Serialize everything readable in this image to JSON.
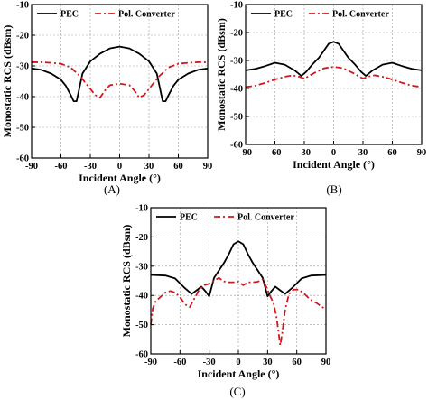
{
  "chart_data": [
    {
      "type": "line",
      "caption": "(A)",
      "xlabel": "Incident Angle (°)",
      "ylabel": "Monostatic RCS (dBsm)",
      "xlim": [
        -90,
        90
      ],
      "ylim": [
        -60,
        -10
      ],
      "xticks": [
        -90,
        -60,
        -30,
        0,
        30,
        60,
        90
      ],
      "yticks": [
        -10,
        -20,
        -30,
        -40,
        -50,
        -60
      ],
      "grid": true,
      "legend": "top-inside",
      "series": [
        {
          "name": "PEC",
          "color": "#000000",
          "style": "solid",
          "x": [
            -90,
            -80,
            -70,
            -60,
            -55,
            -50,
            -47,
            -44,
            -42,
            -38,
            -30,
            -20,
            -10,
            0,
            10,
            20,
            30,
            38,
            42,
            44,
            47,
            50,
            55,
            60,
            70,
            80,
            90
          ],
          "y": [
            -30.8,
            -31.3,
            -32.5,
            -34.5,
            -36.5,
            -39.5,
            -41.5,
            -41.5,
            -38.5,
            -32.5,
            -28.5,
            -26,
            -24.3,
            -23.7,
            -24.3,
            -26,
            -28.5,
            -32.5,
            -38.5,
            -41.5,
            -41.5,
            -39.5,
            -36.5,
            -34.5,
            -32.5,
            -31.3,
            -30.8
          ]
        },
        {
          "name": "Pol. Converter",
          "color": "#d2181e",
          "style": "dashdot",
          "x": [
            -90,
            -80,
            -70,
            -60,
            -50,
            -40,
            -30,
            -25,
            -20,
            -15,
            -10,
            0,
            10,
            15,
            20,
            25,
            30,
            40,
            50,
            60,
            70,
            80,
            90
          ],
          "y": [
            -28.8,
            -28.8,
            -29,
            -29.3,
            -30.5,
            -33.5,
            -37.5,
            -39.5,
            -40.3,
            -38,
            -36.3,
            -35.8,
            -36.3,
            -38,
            -40.3,
            -39.5,
            -37.5,
            -33.5,
            -30.5,
            -29.3,
            -29,
            -28.8,
            -28.8
          ]
        }
      ]
    },
    {
      "type": "line",
      "caption": "(B)",
      "xlabel": "Incident Angle (°)",
      "ylabel": "Monostatic RCS (dBsm)",
      "xlim": [
        -90,
        90
      ],
      "ylim": [
        -60,
        -10
      ],
      "xticks": [
        -90,
        -60,
        -30,
        0,
        30,
        60,
        90
      ],
      "yticks": [
        -10,
        -20,
        -30,
        -40,
        -50,
        -60
      ],
      "grid": true,
      "legend": "top-inside",
      "series": [
        {
          "name": "PEC",
          "color": "#000000",
          "style": "solid",
          "x": [
            -90,
            -80,
            -70,
            -60,
            -50,
            -40,
            -33,
            -28,
            -22,
            -15,
            -10,
            -5,
            0,
            5,
            10,
            15,
            22,
            28,
            33,
            40,
            50,
            60,
            70,
            80,
            90
          ],
          "y": [
            -33.5,
            -33,
            -32,
            -30.8,
            -31.5,
            -33.5,
            -35.5,
            -34,
            -31.5,
            -29,
            -26.5,
            -24,
            -23.3,
            -24,
            -26.5,
            -29,
            -31.5,
            -34,
            -35.5,
            -33.5,
            -31.5,
            -30.8,
            -32,
            -33,
            -33.5
          ]
        },
        {
          "name": "Pol. Converter",
          "color": "#d2181e",
          "style": "dashdot",
          "x": [
            -90,
            -80,
            -70,
            -60,
            -50,
            -42,
            -35,
            -30,
            -25,
            -20,
            -10,
            -5,
            0,
            5,
            10,
            20,
            25,
            30,
            35,
            42,
            50,
            60,
            70,
            80,
            90
          ],
          "y": [
            -39.5,
            -39,
            -38,
            -36.8,
            -35.8,
            -35.3,
            -35.8,
            -36.5,
            -35.5,
            -34.5,
            -32.8,
            -32.5,
            -32.3,
            -32.5,
            -32.8,
            -34.5,
            -35.5,
            -36.5,
            -35.8,
            -35.3,
            -35.8,
            -36.8,
            -38,
            -39,
            -39.5
          ]
        }
      ]
    },
    {
      "type": "line",
      "caption": "(C)",
      "xlabel": "Incident Angle (°)",
      "ylabel": "Monostatic RCS (dBsm)",
      "xlim": [
        -90,
        90
      ],
      "ylim": [
        -60,
        -10
      ],
      "xticks": [
        -90,
        -60,
        -30,
        0,
        30,
        60,
        90
      ],
      "yticks": [
        -10,
        -20,
        -30,
        -40,
        -50,
        -60
      ],
      "grid": true,
      "legend": "top-inside",
      "series": [
        {
          "name": "PEC",
          "color": "#000000",
          "style": "solid",
          "x": [
            -90,
            -75,
            -65,
            -55,
            -48,
            -42,
            -38,
            -34,
            -30,
            -25,
            -20,
            -15,
            -10,
            -5,
            0,
            5,
            10,
            15,
            20,
            25,
            30,
            34,
            38,
            42,
            48,
            55,
            65,
            75,
            90
          ],
          "y": [
            -33,
            -33.2,
            -34.2,
            -37.5,
            -39.5,
            -38,
            -37,
            -38.5,
            -40.3,
            -34,
            -31.5,
            -29,
            -26,
            -22.5,
            -21.5,
            -22.5,
            -26,
            -29,
            -31.5,
            -34,
            -40.3,
            -38.5,
            -37,
            -38,
            -39.5,
            -37.5,
            -34.2,
            -33.2,
            -33
          ]
        },
        {
          "name": "Pol. Converter",
          "color": "#d2181e",
          "style": "dashdot",
          "x": [
            -90,
            -88,
            -85,
            -80,
            -75,
            -70,
            -65,
            -60,
            -55,
            -50,
            -46,
            -44,
            -42,
            -40,
            -35,
            -30,
            -25,
            -20,
            -15,
            -10,
            -5,
            0,
            5,
            10,
            15,
            20,
            25,
            30,
            33,
            36,
            39,
            41,
            43,
            45,
            48,
            52,
            57,
            62,
            68,
            74,
            80,
            86,
            90
          ],
          "y": [
            -50,
            -44.5,
            -42,
            -40.5,
            -39,
            -38.5,
            -39,
            -40.5,
            -43,
            -44,
            -41.5,
            -40.5,
            -39,
            -38,
            -36.5,
            -36,
            -35,
            -34,
            -35.2,
            -35.5,
            -35.5,
            -35.3,
            -36.5,
            -35.5,
            -35.5,
            -35.3,
            -34.5,
            -38,
            -40.5,
            -42.5,
            -47,
            -52,
            -57,
            -53,
            -45,
            -39.5,
            -38,
            -38,
            -39.5,
            -41.5,
            -42.5,
            -44,
            -44.5
          ]
        }
      ]
    }
  ]
}
